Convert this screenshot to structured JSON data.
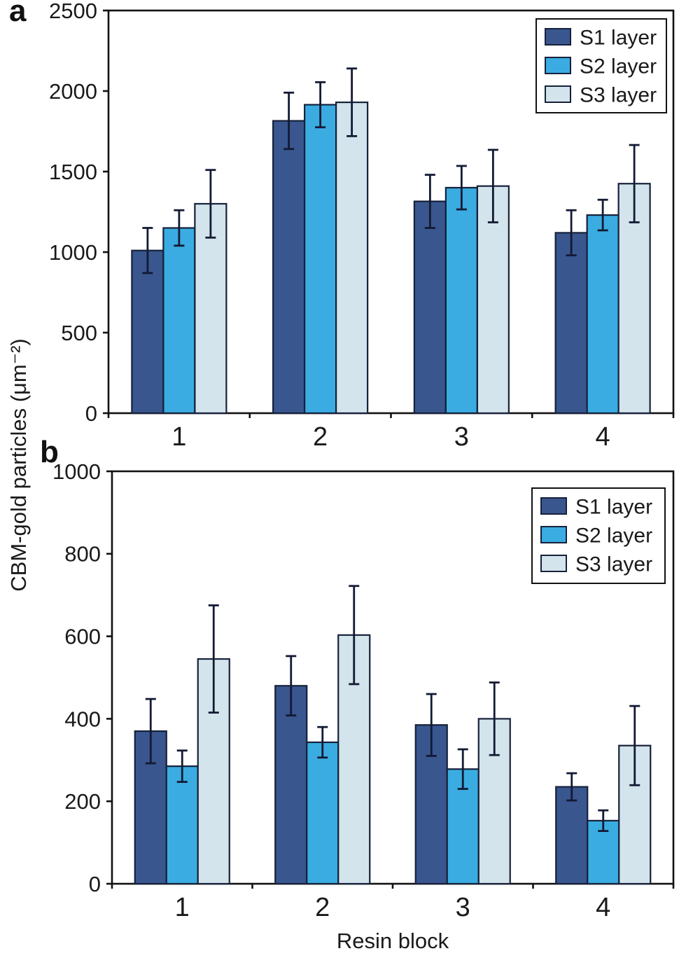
{
  "figure": {
    "y_axis_label": "CBM-gold particles (μm⁻²)",
    "x_axis_label": "Resin block",
    "background_color": "#ffffff",
    "text_color": "#1a1a1a",
    "axis_color": "#111111",
    "bar_outline_color": "#16213a",
    "error_bar_color": "#131a33"
  },
  "chart_data": [
    {
      "type": "bar",
      "panel_label": "a",
      "title": "",
      "xlabel": "",
      "ylabel": "CBM-gold particles (μm⁻²)",
      "categories": [
        "1",
        "2",
        "3",
        "4"
      ],
      "series": [
        {
          "name": "S1 layer",
          "color": "#39568f",
          "values": [
            1010,
            1815,
            1315,
            1120
          ],
          "errors": [
            140,
            175,
            165,
            140
          ]
        },
        {
          "name": "S2 layer",
          "color": "#3aace2",
          "values": [
            1150,
            1915,
            1400,
            1230
          ],
          "errors": [
            110,
            140,
            135,
            95
          ]
        },
        {
          "name": "S3 layer",
          "color": "#d3e4ec",
          "values": [
            1300,
            1930,
            1410,
            1425
          ],
          "errors": [
            210,
            210,
            225,
            240
          ]
        }
      ],
      "ylim": [
        0,
        2500
      ],
      "ytick_step": 500,
      "ytick_labels": [
        "0",
        "500",
        "1000",
        "1500",
        "2000",
        "2500"
      ],
      "grid": false,
      "legend_position": "top-right",
      "legend_entries": [
        "S1 layer",
        "S2 layer",
        "S3 layer"
      ]
    },
    {
      "type": "bar",
      "panel_label": "b",
      "title": "",
      "xlabel": "Resin block",
      "ylabel": "CBM-gold particles (μm⁻²)",
      "categories": [
        "1",
        "2",
        "3",
        "4"
      ],
      "series": [
        {
          "name": "S1 layer",
          "color": "#39568f",
          "values": [
            370,
            480,
            385,
            235
          ],
          "errors": [
            78,
            72,
            75,
            33
          ]
        },
        {
          "name": "S2 layer",
          "color": "#3aace2",
          "values": [
            285,
            343,
            278,
            153
          ],
          "errors": [
            38,
            37,
            48,
            25
          ]
        },
        {
          "name": "S3 layer",
          "color": "#d3e4ec",
          "values": [
            545,
            603,
            400,
            335
          ],
          "errors": [
            130,
            119,
            88,
            96
          ]
        }
      ],
      "ylim": [
        0,
        1000
      ],
      "ytick_step": 200,
      "ytick_labels": [
        "0",
        "200",
        "400",
        "600",
        "800",
        "1000"
      ],
      "grid": false,
      "legend_position": "top-right",
      "legend_entries": [
        "S1 layer",
        "S2 layer",
        "S3 layer"
      ]
    }
  ]
}
